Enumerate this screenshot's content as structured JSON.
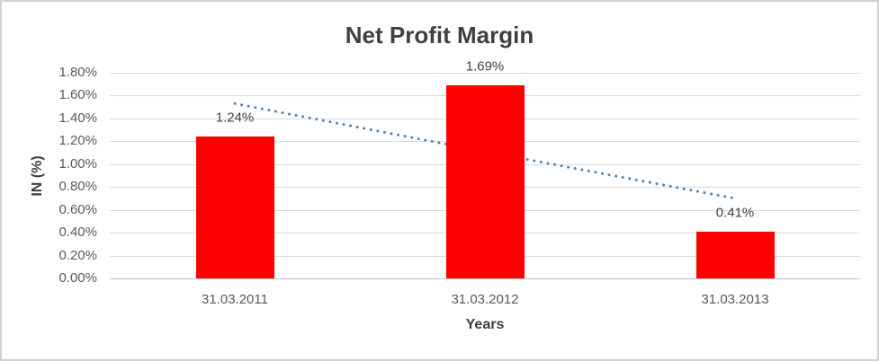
{
  "chart_data": {
    "type": "bar",
    "title": "Net Profit Margin",
    "xlabel": "Years",
    "ylabel": "IN (%)",
    "categories": [
      "31.03.2011",
      "31.03.2012",
      "31.03.2013"
    ],
    "values": [
      1.24,
      1.69,
      0.41
    ],
    "data_labels": [
      "1.24%",
      "1.69%",
      "0.41%"
    ],
    "unit": "%",
    "ylim": [
      0,
      1.8
    ],
    "ytick_step": 0.2,
    "ytick_labels": [
      "1.80%",
      "1.60%",
      "1.40%",
      "1.20%",
      "1.00%",
      "0.80%",
      "0.60%",
      "0.40%",
      "0.20%",
      "0.00%"
    ],
    "grid": true,
    "legend": false,
    "bar_color": "#ff0000",
    "trendline": {
      "type": "linear",
      "style": "dotted",
      "color": "#4f81bd",
      "values": [
        1.53,
        1.11,
        0.7
      ]
    },
    "text_colors": {
      "title": "#3f3f3f",
      "tick_labels": "#595959",
      "data_labels": "#404040"
    },
    "gridline_color": "#d9d9d9"
  }
}
